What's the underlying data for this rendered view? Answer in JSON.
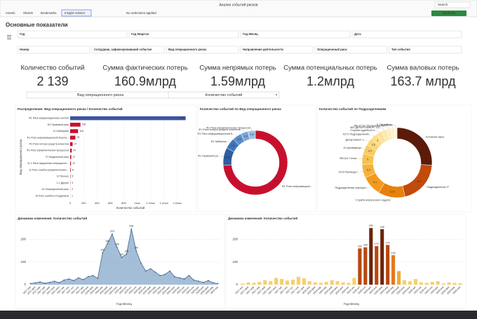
{
  "toolbar": {
    "tabs": [
      "Assets",
      "Sheets",
      "Bookmarks"
    ],
    "insight": "Insight Advisor",
    "selections": "No selections applied",
    "app_title": "Анализ событий рисков",
    "search": "Search",
    "duplicate": "Duplicate"
  },
  "sheet_title": "Основные показатели",
  "filters": [
    [
      "Год",
      "Год Квартал",
      "Год Месяц",
      "Дата"
    ],
    [
      "Номер",
      "Сотрудник, зафиксировавший событие",
      "Вид операционного риска",
      "Направление деятельности",
      "Операционный риск",
      "Тип события"
    ]
  ],
  "kpis": [
    {
      "label": "Количество событий",
      "value": "2 139"
    },
    {
      "label": "Сумма фактических потерь",
      "value": "160.9млрд"
    },
    {
      "label": "Сумма непрямых потерь",
      "value": "1.59млрд"
    },
    {
      "label": "Сумма потенциальных потерь",
      "value": "1.2млрд"
    },
    {
      "label": "Сумма валовых потерь",
      "value": "163.7 млрд"
    }
  ],
  "selectors": [
    "Вид операционного риска",
    "Количество событий"
  ],
  "chart_data": [
    {
      "type": "bar",
      "orientation": "horizontal",
      "title": "Распределение: Вид операционного риска / Количество событий",
      "x_label": "Количество событий",
      "y_label": "Вид операционного риска",
      "categories": [
        "Ф1 Риск информационных систем",
        "Ф1 Правовой риск",
        "11 Киберриск",
        "Ф1 Риск информационной безопа...",
        "Ф1 Риск потери средств клиентов",
        "Ф1 Риск управленческих процессов",
        "07 Модельный риск",
        "11.1 Риск нарушения операционн...",
        "11 Риск ошибок управленческих...",
        "12 Прочее",
        "1.1 Другое",
        "10 Операционный риск",
        "10 Риск ошибок сотрудников"
      ],
      "values": [
        1723,
        154,
        118,
        78,
        37,
        24,
        17,
        12,
        8,
        5,
        3,
        2,
        1
      ],
      "colors": [
        "#3b55a0",
        "#c8102e",
        "#c8102e",
        "#c8102e",
        "#c8102e",
        "#c8102e",
        "#c8102e",
        "#c8102e",
        "#c8102e",
        "#c8102e",
        "#c8102e",
        "#c8102e",
        "#c8102e"
      ],
      "xlim": [
        0,
        1800
      ],
      "xticks": [
        0,
        200,
        400,
        600,
        800,
        {
          "value": 1000,
          "label": "1тыс"
        },
        {
          "value": 1200,
          "label": "1.2тыс"
        },
        {
          "value": 1400,
          "label": "1.4тыс"
        },
        {
          "value": 1600,
          "label": "1.6тыс"
        }
      ],
      "grid": true
    },
    {
      "type": "pie",
      "title": "Количество событий по Вид операционного риска",
      "categories": [
        "Ф1 Риск информацион...",
        "Ф1 Правовой ри...",
        "Ф1 Кибериск",
        "Ф1 Риск информационной б...",
        "Ф1 Риск потери средств клиентов...",
        "Ф1 Риск управленческих процессов"
      ],
      "values": [
        73.6,
        8.93,
        5.5,
        4.5,
        3.8,
        3.67
      ],
      "colors": [
        "#c8102e",
        "#2f5d9e",
        "#3f76b8",
        "#5b8fcc",
        "#7aa7d8",
        "#9cc0e4"
      ]
    },
    {
      "type": "pie",
      "title": "Количество событий по Подразделениям",
      "categories": [
        "Головной офис",
        "Подразделение IT",
        "Служба внутреннего аудита",
        "Подразделения корпорат...",
        "1215 Руководст...",
        "ФБ1111 Голов...",
        "19 Архивариус",
        "Департамент с...",
        "6171 Подразделение...",
        "Служба судебной и...",
        "463 ДЕПАРТАМЕНТ СО...",
        "ФБ-12-01 Управление по...",
        "5. УЭПО",
        "5. Служба ко..."
      ],
      "values": [
        26.2,
        20.1,
        12.5,
        9.1,
        6.3,
        5,
        4.3,
        3.5,
        3,
        2.6,
        2.4,
        2,
        1.7,
        1.3
      ],
      "colors": [
        "#5c1a08",
        "#c24a0a",
        "#e8800e",
        "#f29a1e",
        "#f6b23a",
        "#f8c04e",
        "#f9cb62",
        "#fad576",
        "#fbdd8a",
        "#fce39c",
        "#fde9ae",
        "#fdeebf",
        "#fef2cd",
        "#fef6dc"
      ]
    },
    {
      "type": "area",
      "title": "Динамика изменения: Количество событий",
      "x_label": "Год Месяц",
      "color": "#7fa3c6",
      "categories": [
        "2017-янв",
        "2017-фев",
        "2017-мар",
        "2017-апр",
        "2017-май",
        "2017-июн",
        "2017-июл",
        "2017-авг",
        "2017-сен",
        "2017-окт",
        "2017-ноя",
        "2017-дек",
        "2018-янв",
        "2018-фев",
        "2018-мар",
        "2018-апр",
        "2018-май",
        "2018-июн",
        "2018-июл",
        "2018-авг",
        "2018-сен",
        "2018-окт",
        "2018-ноя",
        "2018-дек",
        "2019-янв",
        "2019-фев",
        "2019-мар",
        "2019-апр",
        "2019-май",
        "2019-июн",
        "2019-июл",
        "2019-авг",
        "2019-сен",
        "2019-окт",
        "2019-ноя",
        "2019-дек",
        "2020-янв",
        "2020-фев",
        "2020-мар",
        "2020-апр"
      ],
      "values": [
        5,
        8,
        12,
        6,
        10,
        15,
        9,
        20,
        25,
        18,
        30,
        22,
        35,
        40,
        28,
        140,
        180,
        223,
        165,
        120,
        135,
        246,
        150,
        95,
        60,
        70,
        55,
        40,
        45,
        60,
        35,
        30,
        25,
        40,
        20,
        15,
        10,
        18,
        8,
        5
      ],
      "ylim": [
        0,
        260
      ],
      "yticks": [
        0,
        100,
        200
      ]
    },
    {
      "type": "bar",
      "orientation": "vertical",
      "title": "Динамика изменения: Количество событий",
      "x_label": "Год Месяц",
      "color_scale": [
        "#f7cf6a",
        "#f2a93a",
        "#e27a1c",
        "#b8470e",
        "#6e2208"
      ],
      "categories": [
        "2017-янв",
        "2017-фев",
        "2017-мар",
        "2017-апр",
        "2017-май",
        "2017-июн",
        "2017-июл",
        "2017-авг",
        "2017-сен",
        "2017-окт",
        "2017-ноя",
        "2017-дек",
        "2018-янв",
        "2018-фев",
        "2018-мар",
        "2018-апр",
        "2018-май",
        "2018-июн",
        "2018-июл",
        "2018-авг",
        "2018-сен",
        "2018-окт",
        "2018-ноя",
        "2018-дек",
        "2019-янв",
        "2019-фев",
        "2019-мар",
        "2019-апр",
        "2019-май",
        "2019-июн",
        "2019-июл",
        "2019-авг",
        "2019-сен",
        "2019-окт",
        "2019-ноя",
        "2019-дек",
        "2020-янв",
        "2020-фев",
        "2020-мар",
        "2020-апр"
      ],
      "values": [
        5,
        10,
        8,
        12,
        20,
        15,
        30,
        25,
        18,
        22,
        35,
        28,
        15,
        10,
        8,
        12,
        20,
        15,
        10,
        8,
        30,
        160,
        165,
        250,
        170,
        245,
        175,
        130,
        60,
        20,
        15,
        25,
        10,
        8,
        12,
        15,
        5,
        10,
        8,
        6
      ],
      "ylim": [
        0,
        260
      ],
      "yticks": [
        0,
        100,
        200
      ]
    }
  ]
}
